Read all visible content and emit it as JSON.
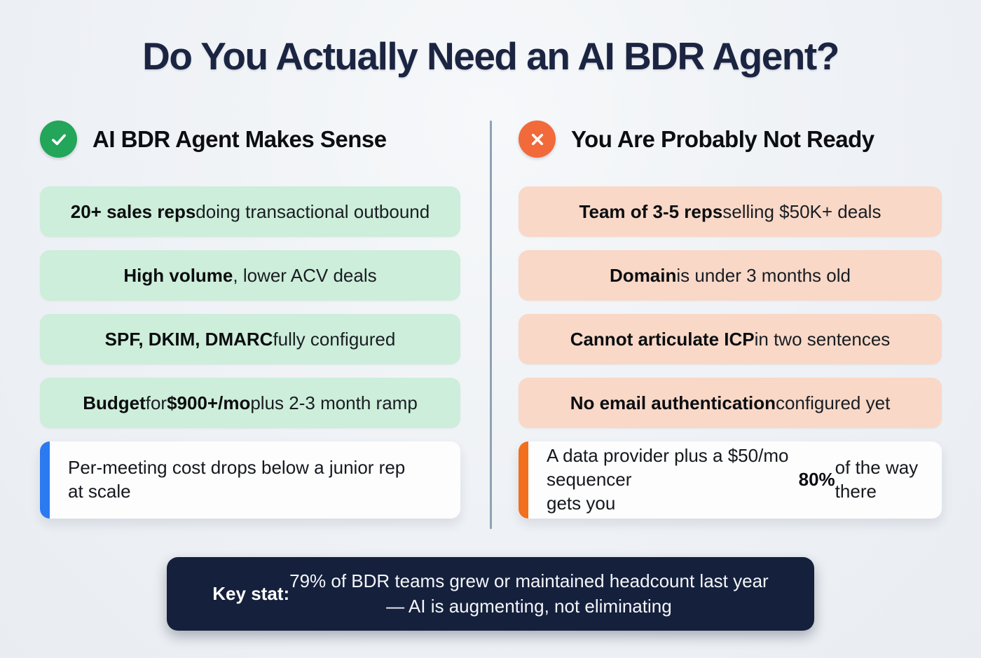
{
  "page": {
    "title": "Do You Actually Need an AI BDR Agent?"
  },
  "colors": {
    "background": "#eef1f5",
    "title_text": "#1b2542",
    "green_box_fill": "#cdeeda",
    "peach_box_fill": "#f9d8c7",
    "green_icon": "#23a55a",
    "orange_icon": "#f2693a",
    "blue_accent_border": "#2b7af0",
    "orange_accent_border": "#f26f1e",
    "navy_banner_fill": "#15203c",
    "divider": "#8ea2b4"
  },
  "columns": [
    {
      "id": "makes-sense",
      "icon": "check-circle-icon",
      "heading": "AI BDR Agent Makes Sense",
      "items": [
        {
          "segments": [
            {
              "t": "20+ sales reps",
              "b": true
            },
            {
              "t": " doing transactional outbound",
              "b": false
            }
          ]
        },
        {
          "segments": [
            {
              "t": "High volume",
              "b": true
            },
            {
              "t": ", lower ACV deals",
              "b": false
            }
          ]
        },
        {
          "segments": [
            {
              "t": "SPF, DKIM, DMARC",
              "b": true
            },
            {
              "t": " fully configured",
              "b": false
            }
          ]
        },
        {
          "segments": [
            {
              "t": "Budget",
              "b": true
            },
            {
              "t": " for ",
              "b": false
            },
            {
              "t": "$900+/mo",
              "b": true
            },
            {
              "t": " plus 2-3 month ramp",
              "b": false
            }
          ]
        }
      ],
      "callout": {
        "segments": [
          {
            "t": "Per-meeting cost drops below a junior rep\nat scale",
            "b": false
          }
        ]
      }
    },
    {
      "id": "not-ready",
      "icon": "x-circle-icon",
      "heading": "You Are Probably Not Ready",
      "items": [
        {
          "segments": [
            {
              "t": "Team of 3-5 reps",
              "b": true
            },
            {
              "t": " selling $50K+ deals",
              "b": false
            }
          ]
        },
        {
          "segments": [
            {
              "t": "Domain",
              "b": true
            },
            {
              "t": " is under 3 months old",
              "b": false
            }
          ]
        },
        {
          "segments": [
            {
              "t": "Cannot articulate ICP",
              "b": true
            },
            {
              "t": " in two sentences",
              "b": false
            }
          ]
        },
        {
          "segments": [
            {
              "t": "No email authentication",
              "b": true
            },
            {
              "t": " configured yet",
              "b": false
            }
          ]
        }
      ],
      "callout": {
        "segments": [
          {
            "t": "A data provider plus a $50/mo sequencer\ngets you ",
            "b": false
          },
          {
            "t": "80%",
            "b": true
          },
          {
            "t": " of the way there",
            "b": false
          }
        ]
      }
    }
  ],
  "key_stat": {
    "segments": [
      {
        "t": "Key stat:",
        "b": true
      },
      {
        "t": " 79% of BDR teams grew or maintained headcount last year\n— AI is augmenting, not eliminating",
        "b": false
      }
    ]
  }
}
